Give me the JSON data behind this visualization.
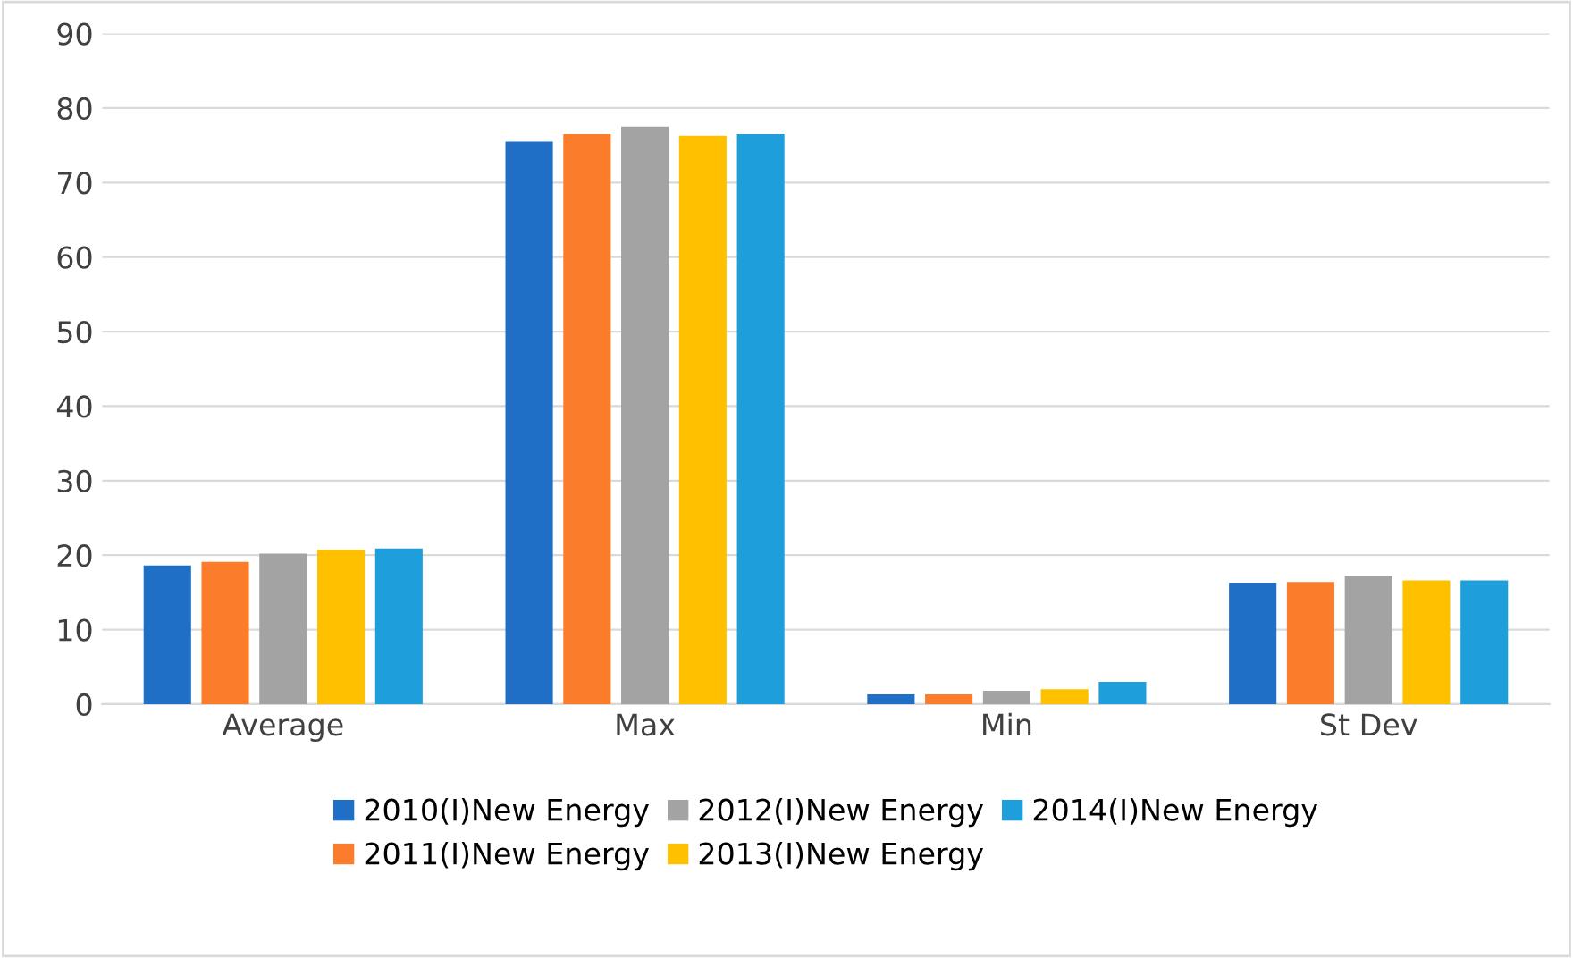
{
  "chart_data": {
    "type": "bar",
    "categories": [
      "Average",
      "Max",
      "Min",
      "St Dev"
    ],
    "series": [
      {
        "name": "2010(I)New Energy",
        "color": "#1f6fc6",
        "values": [
          18.6,
          75.5,
          1.3,
          16.3
        ]
      },
      {
        "name": "2011(I)New Energy",
        "color": "#fb7d2b",
        "values": [
          19.1,
          76.5,
          1.3,
          16.4
        ]
      },
      {
        "name": "2012(I)New Energy",
        "color": "#a3a3a3",
        "values": [
          20.2,
          77.5,
          1.8,
          17.2
        ]
      },
      {
        "name": "2013(I)New Energy",
        "color": "#ffc000",
        "values": [
          20.7,
          76.3,
          2.0,
          16.6
        ]
      },
      {
        "name": "2014(I)New Energy",
        "color": "#1e9fdb",
        "values": [
          20.9,
          76.5,
          3.0,
          16.6
        ]
      }
    ],
    "ylim": [
      0,
      90
    ],
    "yticks": [
      0,
      10,
      20,
      30,
      40,
      50,
      60,
      70,
      80,
      90
    ],
    "grid": "y",
    "legend": "bottom"
  }
}
